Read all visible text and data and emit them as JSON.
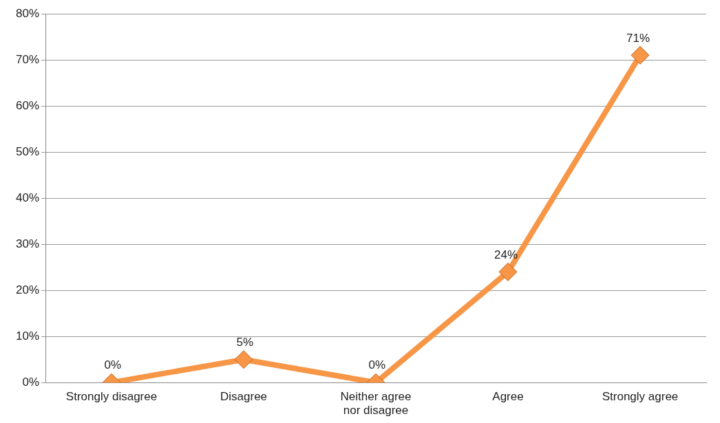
{
  "chart_data": {
    "type": "line",
    "categories": [
      "Strongly disagree",
      "Disagree",
      "Neither agree nor disagree",
      "Agree",
      "Strongly agree"
    ],
    "series": [
      {
        "color": "#f79646",
        "values": [
          0,
          5,
          0,
          24,
          71
        ],
        "value_labels": [
          "0%",
          "5%",
          "0%",
          "24%",
          "71%"
        ]
      }
    ],
    "ylim": [
      0,
      80
    ],
    "yticks": [
      {
        "value": 0,
        "label": "0%"
      },
      {
        "value": 10,
        "label": "10%"
      },
      {
        "value": 20,
        "label": "20%"
      },
      {
        "value": 30,
        "label": "30%"
      },
      {
        "value": 40,
        "label": "40%"
      },
      {
        "value": 50,
        "label": "50%"
      },
      {
        "value": 60,
        "label": "60%"
      },
      {
        "value": 70,
        "label": "70%"
      },
      {
        "value": 80,
        "label": "80%"
      }
    ],
    "grid": "y",
    "legend": false,
    "marker": "diamond",
    "line_style": "solid"
  }
}
